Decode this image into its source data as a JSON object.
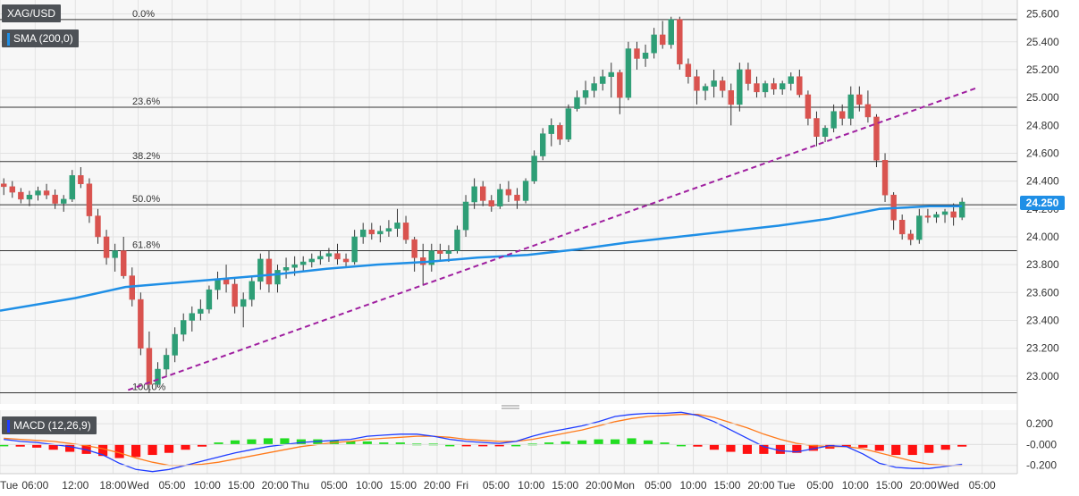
{
  "symbol_label": "XAG/USD",
  "indicator_label": "SMA (200,0)",
  "macd_label": "MACD (12,26,9)",
  "current_price": "24.250",
  "colors": {
    "background": "#ffffff",
    "plot_bg": "#f7f7f7",
    "grid": "#e2e2e2",
    "bull": "#2e9e76",
    "bear": "#d9534f",
    "sma": "#1f8fe6",
    "trend": "#a020a0",
    "fib": "#333333",
    "label_bg": "#4d5156",
    "macd_line": "#1f3cff",
    "signal_line": "#ff7a1a",
    "hist_pos": "#22dd22",
    "hist_neg": "#ff1111",
    "price_tag": "#1f8fe6"
  },
  "chart_data": {
    "type": "candlestick",
    "price_axis": {
      "min": 22.8,
      "max": 25.7,
      "ticks": [
        "25.600",
        "25.400",
        "25.200",
        "25.000",
        "24.800",
        "24.600",
        "24.400",
        "24.200",
        "24.000",
        "23.800",
        "23.600",
        "23.400",
        "23.200",
        "23.000"
      ]
    },
    "time_axis": {
      "labels": [
        "Tue",
        "06:00",
        "12:00",
        "18:00",
        "Wed",
        "05:00",
        "10:00",
        "15:00",
        "20:00",
        "Thu",
        "05:00",
        "10:00",
        "15:00",
        "20:00",
        "Fri",
        "05:00",
        "10:00",
        "15:00",
        "20:00",
        "Mon",
        "05:00",
        "10:00",
        "15:00",
        "20:00",
        "Tue",
        "05:00",
        "10:00",
        "15:00",
        "20:00",
        "Wed",
        "05:00"
      ],
      "positions": [
        0,
        1.4,
        3.0,
        4.5,
        5.5,
        6.85,
        8.25,
        9.6,
        10.95,
        11.95,
        13.3,
        14.7,
        16.05,
        17.4,
        18.4,
        19.75,
        21.15,
        22.5,
        23.85,
        24.85,
        26.2,
        27.6,
        28.95,
        30.3,
        31.3,
        32.65,
        34.05,
        35.4,
        36.75,
        37.75,
        39.1
      ],
      "range": [
        0,
        40.5
      ]
    },
    "fibonacci": [
      {
        "label": "0.0%",
        "price": 25.56
      },
      {
        "label": "23.6%",
        "price": 24.93
      },
      {
        "label": "38.2%",
        "price": 24.54
      },
      {
        "label": "50.0%",
        "price": 24.23
      },
      {
        "label": "61.8%",
        "price": 23.9
      },
      {
        "label": "100.0%",
        "price": 22.88
      }
    ],
    "trend_line": {
      "start": [
        5.1,
        22.9
      ],
      "end": [
        38.9,
        25.07
      ]
    },
    "candles": [
      [
        24.38,
        24.42,
        24.3,
        24.36
      ],
      [
        24.36,
        24.4,
        24.28,
        24.32
      ],
      [
        24.32,
        24.35,
        24.24,
        24.27
      ],
      [
        24.27,
        24.33,
        24.22,
        24.3
      ],
      [
        24.3,
        24.36,
        24.26,
        24.33
      ],
      [
        24.33,
        24.38,
        24.27,
        24.3
      ],
      [
        24.3,
        24.34,
        24.2,
        24.24
      ],
      [
        24.24,
        24.3,
        24.18,
        24.27
      ],
      [
        24.27,
        24.48,
        24.25,
        24.44
      ],
      [
        24.44,
        24.5,
        24.35,
        24.38
      ],
      [
        24.38,
        24.42,
        24.1,
        24.15
      ],
      [
        24.15,
        24.2,
        23.95,
        24.0
      ],
      [
        24.0,
        24.05,
        23.8,
        23.85
      ],
      [
        23.85,
        23.95,
        23.75,
        23.9
      ],
      [
        23.9,
        24.0,
        23.7,
        23.72
      ],
      [
        23.72,
        23.78,
        23.5,
        23.55
      ],
      [
        23.55,
        23.6,
        23.15,
        23.2
      ],
      [
        23.2,
        23.32,
        22.88,
        22.94
      ],
      [
        22.94,
        23.1,
        22.92,
        23.05
      ],
      [
        23.05,
        23.2,
        23.0,
        23.15
      ],
      [
        23.15,
        23.35,
        23.1,
        23.3
      ],
      [
        23.3,
        23.45,
        23.25,
        23.4
      ],
      [
        23.4,
        23.5,
        23.32,
        23.45
      ],
      [
        23.45,
        23.55,
        23.4,
        23.48
      ],
      [
        23.48,
        23.65,
        23.45,
        23.62
      ],
      [
        23.62,
        23.75,
        23.55,
        23.7
      ],
      [
        23.7,
        23.8,
        23.6,
        23.66
      ],
      [
        23.66,
        23.7,
        23.45,
        23.5
      ],
      [
        23.5,
        23.6,
        23.35,
        23.55
      ],
      [
        23.55,
        23.72,
        23.5,
        23.68
      ],
      [
        23.68,
        23.88,
        23.62,
        23.84
      ],
      [
        23.84,
        23.9,
        23.6,
        23.66
      ],
      [
        23.66,
        23.8,
        23.6,
        23.76
      ],
      [
        23.76,
        23.85,
        23.7,
        23.78
      ],
      [
        23.78,
        23.86,
        23.72,
        23.8
      ],
      [
        23.8,
        23.86,
        23.75,
        23.82
      ],
      [
        23.82,
        23.88,
        23.78,
        23.84
      ],
      [
        23.84,
        23.9,
        23.8,
        23.86
      ],
      [
        23.86,
        23.92,
        23.82,
        23.88
      ],
      [
        23.88,
        23.95,
        23.8,
        23.84
      ],
      [
        23.84,
        23.88,
        23.78,
        23.82
      ],
      [
        23.82,
        24.05,
        23.8,
        24.0
      ],
      [
        24.0,
        24.1,
        23.95,
        24.05
      ],
      [
        24.05,
        24.1,
        23.98,
        24.02
      ],
      [
        24.02,
        24.08,
        23.96,
        24.04
      ],
      [
        24.04,
        24.12,
        24.0,
        24.06
      ],
      [
        24.06,
        24.2,
        24.0,
        24.1
      ],
      [
        24.1,
        24.15,
        23.95,
        23.98
      ],
      [
        23.98,
        24.0,
        23.75,
        23.85
      ],
      [
        23.85,
        23.95,
        23.65,
        23.8
      ],
      [
        23.8,
        23.95,
        23.75,
        23.9
      ],
      [
        23.9,
        23.95,
        23.82,
        23.88
      ],
      [
        23.88,
        23.94,
        23.82,
        23.9
      ],
      [
        23.9,
        24.08,
        23.88,
        24.05
      ],
      [
        24.05,
        24.3,
        24.0,
        24.25
      ],
      [
        24.25,
        24.42,
        24.2,
        24.36
      ],
      [
        24.36,
        24.4,
        24.22,
        24.26
      ],
      [
        24.26,
        24.3,
        24.18,
        24.22
      ],
      [
        24.22,
        24.38,
        24.2,
        24.34
      ],
      [
        24.34,
        24.4,
        24.25,
        24.3
      ],
      [
        24.3,
        24.35,
        24.2,
        24.26
      ],
      [
        24.26,
        24.42,
        24.24,
        24.4
      ],
      [
        24.4,
        24.62,
        24.38,
        24.58
      ],
      [
        24.58,
        24.78,
        24.55,
        24.74
      ],
      [
        24.74,
        24.85,
        24.65,
        24.8
      ],
      [
        24.8,
        24.82,
        24.66,
        24.7
      ],
      [
        24.7,
        24.95,
        24.68,
        24.92
      ],
      [
        24.92,
        25.05,
        24.9,
        25.0
      ],
      [
        25.0,
        25.12,
        24.95,
        25.05
      ],
      [
        25.05,
        25.15,
        25.0,
        25.1
      ],
      [
        25.1,
        25.2,
        25.05,
        25.15
      ],
      [
        25.15,
        25.25,
        25.0,
        25.18
      ],
      [
        25.18,
        25.2,
        24.88,
        25.0
      ],
      [
        25.0,
        25.4,
        24.98,
        25.35
      ],
      [
        25.35,
        25.4,
        25.2,
        25.28
      ],
      [
        25.28,
        25.38,
        25.22,
        25.32
      ],
      [
        25.32,
        25.5,
        25.28,
        25.45
      ],
      [
        25.45,
        25.55,
        25.35,
        25.38
      ],
      [
        25.38,
        25.58,
        25.35,
        25.56
      ],
      [
        25.56,
        25.58,
        25.2,
        25.24
      ],
      [
        25.24,
        25.28,
        25.1,
        25.15
      ],
      [
        25.15,
        25.2,
        24.95,
        25.05
      ],
      [
        25.05,
        25.1,
        24.98,
        25.08
      ],
      [
        25.08,
        25.2,
        25.0,
        25.12
      ],
      [
        25.12,
        25.15,
        25.0,
        25.05
      ],
      [
        25.05,
        25.1,
        24.8,
        24.95
      ],
      [
        24.95,
        25.25,
        24.9,
        25.2
      ],
      [
        25.2,
        25.25,
        25.05,
        25.1
      ],
      [
        25.1,
        25.15,
        25.0,
        25.04
      ],
      [
        25.04,
        25.12,
        25.0,
        25.1
      ],
      [
        25.1,
        25.14,
        25.02,
        25.06
      ],
      [
        25.06,
        25.12,
        25.02,
        25.1
      ],
      [
        25.1,
        25.18,
        25.05,
        25.15
      ],
      [
        25.15,
        25.2,
        25.0,
        25.02
      ],
      [
        25.02,
        25.05,
        24.8,
        24.85
      ],
      [
        24.85,
        24.9,
        24.65,
        24.72
      ],
      [
        24.72,
        24.8,
        24.68,
        24.78
      ],
      [
        24.78,
        24.95,
        24.75,
        24.9
      ],
      [
        24.9,
        24.95,
        24.8,
        24.85
      ],
      [
        24.85,
        25.08,
        24.8,
        25.02
      ],
      [
        25.02,
        25.08,
        24.9,
        24.95
      ],
      [
        24.95,
        25.05,
        24.82,
        24.86
      ],
      [
        24.86,
        24.88,
        24.5,
        24.55
      ],
      [
        24.55,
        24.6,
        24.25,
        24.3
      ],
      [
        24.3,
        24.32,
        24.05,
        24.12
      ],
      [
        24.12,
        24.16,
        23.98,
        24.02
      ],
      [
        24.02,
        24.05,
        23.94,
        23.98
      ],
      [
        23.98,
        24.2,
        23.95,
        24.15
      ],
      [
        24.15,
        24.2,
        24.1,
        24.14
      ],
      [
        24.14,
        24.18,
        24.1,
        24.16
      ],
      [
        24.16,
        24.2,
        24.1,
        24.18
      ],
      [
        24.18,
        24.24,
        24.08,
        24.14
      ],
      [
        24.14,
        24.28,
        24.12,
        24.25
      ]
    ],
    "sma_200": [
      [
        0,
        23.47
      ],
      [
        3,
        23.56
      ],
      [
        5,
        23.64
      ],
      [
        7,
        23.67
      ],
      [
        9,
        23.7
      ],
      [
        11,
        23.73
      ],
      [
        13,
        23.77
      ],
      [
        15,
        23.8
      ],
      [
        17,
        23.82
      ],
      [
        19,
        23.85
      ],
      [
        21,
        23.87
      ],
      [
        23,
        23.91
      ],
      [
        25,
        23.96
      ],
      [
        27,
        24.0
      ],
      [
        29,
        24.04
      ],
      [
        31,
        24.08
      ],
      [
        33,
        24.13
      ],
      [
        35,
        24.2
      ],
      [
        37,
        24.22
      ],
      [
        38.3,
        24.22
      ]
    ],
    "macd": {
      "axis_ticks": [
        "0.200",
        "-0.000",
        "-0.200"
      ],
      "range": [
        -0.28,
        0.33
      ],
      "series": [
        {
          "name": "MACD (12,26,9)"
        }
      ],
      "macd_line": [
        0.05,
        0.03,
        0.02,
        0.0,
        -0.02,
        -0.05,
        -0.1,
        -0.18,
        -0.24,
        -0.26,
        -0.24,
        -0.2,
        -0.16,
        -0.12,
        -0.08,
        -0.05,
        -0.02,
        0.0,
        0.02,
        0.03,
        0.04,
        0.05,
        0.08,
        0.09,
        0.1,
        0.1,
        0.08,
        0.05,
        0.03,
        0.02,
        0.01,
        0.03,
        0.08,
        0.12,
        0.15,
        0.18,
        0.22,
        0.27,
        0.29,
        0.3,
        0.3,
        0.31,
        0.28,
        0.22,
        0.14,
        0.06,
        -0.02,
        -0.06,
        -0.07,
        -0.04,
        -0.01,
        -0.02,
        -0.09,
        -0.18,
        -0.22,
        -0.23,
        -0.23,
        -0.21,
        -0.19
      ],
      "signal_line": [
        0.06,
        0.05,
        0.04,
        0.03,
        0.01,
        -0.01,
        -0.04,
        -0.08,
        -0.13,
        -0.17,
        -0.2,
        -0.2,
        -0.19,
        -0.17,
        -0.14,
        -0.11,
        -0.08,
        -0.05,
        -0.02,
        0.0,
        0.02,
        0.03,
        0.05,
        0.06,
        0.07,
        0.08,
        0.08,
        0.07,
        0.05,
        0.04,
        0.03,
        0.03,
        0.05,
        0.08,
        0.11,
        0.14,
        0.18,
        0.22,
        0.25,
        0.27,
        0.28,
        0.29,
        0.29,
        0.26,
        0.21,
        0.16,
        0.1,
        0.05,
        0.01,
        -0.01,
        -0.02,
        -0.02,
        -0.04,
        -0.08,
        -0.12,
        -0.16,
        -0.19,
        -0.2,
        -0.2
      ],
      "histogram": [
        0.0,
        -0.02,
        -0.03,
        -0.05,
        -0.07,
        -0.09,
        -0.11,
        -0.13,
        -0.12,
        -0.1,
        -0.08,
        -0.05,
        -0.02,
        0.02,
        0.04,
        0.05,
        0.06,
        0.06,
        0.05,
        0.05,
        0.04,
        0.03,
        0.03,
        0.02,
        0.02,
        0.01,
        0.01,
        0.0,
        -0.01,
        -0.01,
        -0.01,
        0.0,
        0.01,
        0.02,
        0.03,
        0.04,
        0.05,
        0.05,
        0.06,
        0.04,
        0.02,
        0.0,
        -0.02,
        -0.05,
        -0.07,
        -0.09,
        -0.09,
        -0.09,
        -0.08,
        -0.06,
        -0.04,
        -0.02,
        -0.03,
        -0.06,
        -0.1,
        -0.1,
        -0.08,
        -0.05,
        -0.02
      ]
    }
  }
}
